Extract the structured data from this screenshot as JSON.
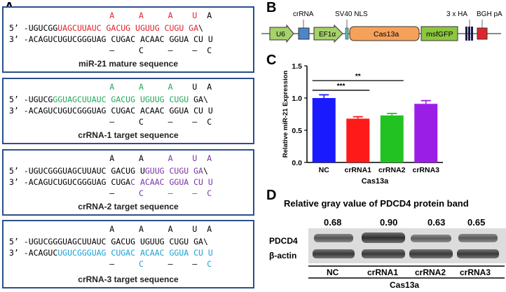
{
  "panelA": {
    "letter": "A",
    "boxes": [
      {
        "prefix_top": "5’ ",
        "prefix_bottom": "3’ ",
        "top_mut": [
          {
            "ch": "A",
            "col": 15
          },
          {
            "ch": "A",
            "col": 21
          },
          {
            "ch": "A",
            "col": 27
          },
          {
            "ch": "U",
            "col": 32
          },
          {
            "ch": "A",
            "col": 35
          }
        ],
        "top_line": [
          {
            "t": "-UGUCGG",
            "c": "k"
          },
          {
            "t": "UAGCUUAUC GACUG UGUUG CUGU GA",
            "c": "r"
          },
          {
            "t": "\\",
            "c": "k"
          }
        ],
        "bottom_line": [
          {
            "t": "-ACAGUCUGUCGGGUAG CUGAC ACAAC GGUA CU U",
            "c": "k"
          }
        ],
        "bottom_mut": [
          {
            "ch": "–",
            "col": 15
          },
          {
            "ch": "C",
            "col": 21
          },
          {
            "ch": "–",
            "col": 27
          },
          {
            "ch": "–",
            "col": 32
          },
          {
            "ch": "C",
            "col": 35
          }
        ],
        "caption": "miR-21 mature sequence"
      },
      {
        "prefix_top": "5’ ",
        "prefix_bottom": "3’ ",
        "top_mut": [
          {
            "ch": "A",
            "col": 15,
            "c": "g"
          },
          {
            "ch": "A",
            "col": 21,
            "c": "g"
          },
          {
            "ch": "A",
            "col": 27,
            "c": "g"
          },
          {
            "ch": "U",
            "col": 32
          },
          {
            "ch": "A",
            "col": 35
          }
        ],
        "top_line": [
          {
            "t": "-UGUCG",
            "c": "k"
          },
          {
            "t": "GGUAGCUUAUC GACUG UGUUG CUGU",
            "c": "g"
          },
          {
            "t": " GA\\",
            "c": "k"
          }
        ],
        "bottom_line": [
          {
            "t": "-ACAGUCUGUCGGGUAG CUGAC ACAAC GGUA CU U",
            "c": "k"
          }
        ],
        "bottom_mut": [
          {
            "ch": "–",
            "col": 15
          },
          {
            "ch": "C",
            "col": 21
          },
          {
            "ch": "–",
            "col": 27
          },
          {
            "ch": "–",
            "col": 32
          },
          {
            "ch": "C",
            "col": 35
          }
        ],
        "caption": "crRNA-1 target sequence"
      },
      {
        "prefix_top": "5’ ",
        "prefix_bottom": "3’ ",
        "top_mut": [
          {
            "ch": "A",
            "col": 15
          },
          {
            "ch": "A",
            "col": 21
          },
          {
            "ch": "A",
            "col": 27,
            "c": "p"
          },
          {
            "ch": "U",
            "col": 32,
            "c": "p"
          },
          {
            "ch": "A",
            "col": 35,
            "c": "p"
          }
        ],
        "top_line": [
          {
            "t": "-UGUCGGGUAGCUUAUC GACUG U",
            "c": "k"
          },
          {
            "t": "GUUG CUGU GA",
            "c": "p"
          },
          {
            "t": "\\",
            "c": "k"
          }
        ],
        "bottom_line": [
          {
            "t": "-ACAGUCUGUCGGGUAG CUGA",
            "c": "k"
          },
          {
            "t": "C ACAAC GGUA CU U",
            "c": "p"
          }
        ],
        "bottom_mut": [
          {
            "ch": "–",
            "col": 15
          },
          {
            "ch": "C",
            "col": 21,
            "c": "p"
          },
          {
            "ch": "–",
            "col": 27,
            "c": "p"
          },
          {
            "ch": "–",
            "col": 32,
            "c": "p"
          },
          {
            "ch": "C",
            "col": 35,
            "c": "p"
          }
        ],
        "caption": "crRNA-2 target sequence"
      },
      {
        "prefix_top": "5’ ",
        "prefix_bottom": "3’ ",
        "top_mut": [
          {
            "ch": "A",
            "col": 15
          },
          {
            "ch": "A",
            "col": 21
          },
          {
            "ch": "A",
            "col": 27
          },
          {
            "ch": "U",
            "col": 32
          },
          {
            "ch": "A",
            "col": 35
          }
        ],
        "top_line": [
          {
            "t": "-UGUCGGGUAGCUUAUC GACUG UGUUG CUGU GA\\",
            "c": "k"
          }
        ],
        "bottom_line": [
          {
            "t": "-ACAGUC",
            "c": "k"
          },
          {
            "t": "UGUCGGGUAG CUGAC ACAAC GGUA CU U",
            "c": "c"
          }
        ],
        "bottom_mut": [
          {
            "ch": "–",
            "col": 15
          },
          {
            "ch": "C",
            "col": 21,
            "c": "c"
          },
          {
            "ch": "–",
            "col": 27
          },
          {
            "ch": "–",
            "col": 32
          },
          {
            "ch": "C",
            "col": 35,
            "c": "c"
          }
        ],
        "caption": "crRNA-3 target sequence"
      }
    ]
  },
  "panelB": {
    "letter": "B",
    "labels": {
      "crrna": "crRNA",
      "sv40": "SV40 NLS",
      "ha": "3 x HA",
      "bgh": "BGH pA",
      "u6": "U6",
      "ef1a": "EF1α",
      "cas13a": "Cas13a",
      "msfgfp": "msfGFP"
    },
    "colors": {
      "arrow": "#a6d16b",
      "crrna": "#4a86c8",
      "cas13a": "#f5a15a",
      "msfgfp": "#8ec63f",
      "bgh": "#e0242b",
      "ha": "#1a1a4a",
      "nls": "#5bb8b0"
    }
  },
  "panelC": {
    "letter": "C",
    "chart_data": {
      "type": "bar",
      "categories": [
        "NC",
        "crRNA1",
        "crRNA2",
        "crRNA3"
      ],
      "values": [
        1.0,
        0.68,
        0.73,
        0.91
      ],
      "errors": [
        0.05,
        0.03,
        0.03,
        0.05
      ],
      "colors": [
        "#1a1aff",
        "#ff1a1a",
        "#22c222",
        "#9b1ee6"
      ],
      "ylabel": "Relative miR-21 Expression",
      "xlabel_group": "Cas13a",
      "ylim": [
        0,
        1.5
      ],
      "yticks": [
        "0.0",
        "0.5",
        "1.0",
        "1.5"
      ],
      "yticks_values": [
        0.0,
        0.5,
        1.0,
        1.5
      ],
      "significance": [
        {
          "from": "NC",
          "to": "crRNA1",
          "label": "***"
        },
        {
          "from": "NC",
          "to": "crRNA2",
          "label": "**"
        }
      ]
    }
  },
  "panelD": {
    "letter": "D",
    "title": "Relative gray value of PDCD4 protein band",
    "values": [
      "0.68",
      "0.90",
      "0.63",
      "0.65"
    ],
    "row_labels": [
      "PDCD4",
      "β-actin"
    ],
    "lanes": [
      "NC",
      "crRNA1",
      "crRNA2",
      "crRNA3"
    ],
    "group": "Cas13a"
  }
}
